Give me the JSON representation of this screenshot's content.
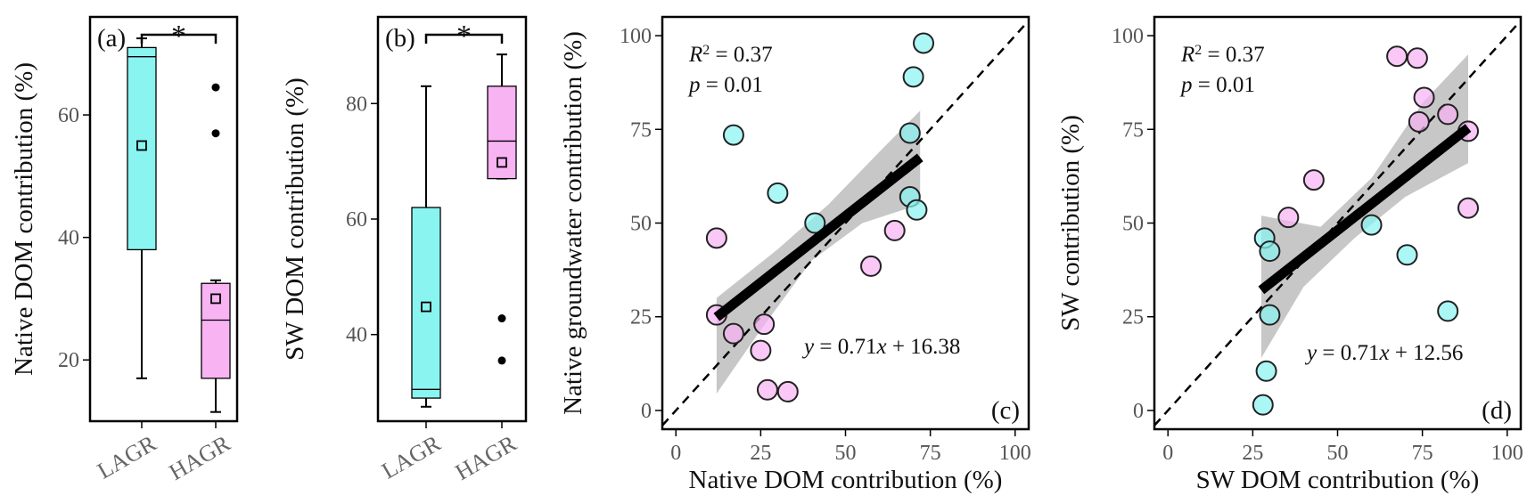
{
  "colors": {
    "lagr": "#8af4f1",
    "hagr": "#f7b3f2",
    "ci_band": "#bdbdbd",
    "frame": "#000000",
    "tick_text": "#555555"
  },
  "chart_data": [
    {
      "panel": "(a)",
      "type": "box",
      "ylabel": "Native DOM contribution (%)",
      "categories": [
        "LAGR",
        "HAGR"
      ],
      "ylim": [
        10,
        76
      ],
      "yticks": [
        20,
        40,
        60
      ],
      "significance": "*",
      "boxes": [
        {
          "category": "LAGR",
          "whisker_low": 17,
          "q1": 38,
          "median": 69.5,
          "q3": 71,
          "whisker_high": 72.5,
          "mean": 55,
          "outliers": []
        },
        {
          "category": "HAGR",
          "whisker_low": 11.5,
          "q1": 17,
          "median": 26.5,
          "q3": 32.5,
          "whisker_high": 33,
          "mean": 30,
          "outliers": [
            57,
            64.5
          ]
        }
      ]
    },
    {
      "panel": "(b)",
      "type": "box",
      "ylabel": "SW DOM contribution (%)",
      "categories": [
        "LAGR",
        "HAGR"
      ],
      "ylim": [
        25,
        95
      ],
      "yticks": [
        40,
        60,
        80
      ],
      "significance": "*",
      "boxes": [
        {
          "category": "LAGR",
          "whisker_low": 27.5,
          "q1": 29,
          "median": 30.5,
          "q3": 62,
          "whisker_high": 83,
          "mean": 44.8,
          "outliers": []
        },
        {
          "category": "HAGR",
          "whisker_low": 67,
          "q1": 67,
          "median": 73.5,
          "q3": 83,
          "whisker_high": 88.5,
          "mean": 69.8,
          "outliers": [
            35.5,
            42.8
          ]
        }
      ]
    },
    {
      "panel": "(c)",
      "type": "scatter",
      "xlabel": "Native DOM contribution (%)",
      "ylabel": "Native groundwater contribution (%)",
      "xlim": [
        -4,
        104
      ],
      "ylim": [
        -5,
        105
      ],
      "xticks": [
        0,
        25,
        50,
        75,
        100
      ],
      "yticks": [
        0,
        25,
        50,
        75,
        100
      ],
      "r2_label": "R",
      "r2_sup": "2",
      "r2_value": " = 0.37",
      "p_label": "p",
      "p_value": " = 0.01",
      "eq_prefix": "y",
      "eq_mid": " = 0.71",
      "eq_var": "x",
      "eq_suffix": " + 16.38",
      "fit": {
        "slope": 0.71,
        "intercept": 16.38,
        "x_range": [
          12,
          72
        ]
      },
      "ci_band": [
        [
          12,
          4.5
        ],
        [
          25,
          21.5
        ],
        [
          40,
          40
        ],
        [
          55,
          50
        ],
        [
          72,
          55
        ],
        [
          72,
          80
        ],
        [
          60,
          69
        ],
        [
          45,
          55
        ],
        [
          30,
          43
        ],
        [
          12,
          30
        ]
      ],
      "series": [
        {
          "group": "LAGR",
          "points": [
            [
              17,
              73.5
            ],
            [
              30,
              58
            ],
            [
              41,
              50
            ],
            [
              69,
              74
            ],
            [
              70,
              89
            ],
            [
              73,
              98
            ],
            [
              69,
              57
            ],
            [
              71,
              53.5
            ]
          ]
        },
        {
          "group": "HAGR",
          "points": [
            [
              12,
              46
            ],
            [
              12,
              25.5
            ],
            [
              17,
              20.5
            ],
            [
              25,
              16
            ],
            [
              26,
              23
            ],
            [
              27,
              5.5
            ],
            [
              33,
              5
            ],
            [
              57.5,
              38.5
            ],
            [
              64.5,
              48
            ]
          ]
        }
      ]
    },
    {
      "panel": "(d)",
      "type": "scatter",
      "xlabel": "SW DOM contribution (%)",
      "ylabel": "SW contribution (%)",
      "xlim": [
        -4,
        104
      ],
      "ylim": [
        -5,
        105
      ],
      "xticks": [
        0,
        25,
        50,
        75,
        100
      ],
      "yticks": [
        0,
        25,
        50,
        75,
        100
      ],
      "r2_label": "R",
      "r2_sup": "2",
      "r2_value": " = 0.37",
      "p_label": "p",
      "p_value": " = 0.01",
      "eq_prefix": "y",
      "eq_mid": " = 0.71",
      "eq_var": "x",
      "eq_suffix": " + 12.56",
      "fit": {
        "slope": 0.71,
        "intercept": 12.56,
        "x_range": [
          27.5,
          88.5
        ]
      },
      "ci_band": [
        [
          27.5,
          14
        ],
        [
          40,
          33
        ],
        [
          55,
          46
        ],
        [
          70,
          57
        ],
        [
          88.5,
          66
        ],
        [
          88.5,
          95
        ],
        [
          75,
          82
        ],
        [
          60,
          62
        ],
        [
          45,
          49
        ],
        [
          27.5,
          52
        ]
      ],
      "series": [
        {
          "group": "LAGR",
          "points": [
            [
              28,
              1.5
            ],
            [
              29,
              10.5
            ],
            [
              28.5,
              46
            ],
            [
              30,
              42.5
            ],
            [
              30,
              25.5
            ],
            [
              60,
              49.5
            ],
            [
              70.5,
              41.5
            ],
            [
              82.5,
              26.5
            ]
          ]
        },
        {
          "group": "HAGR",
          "points": [
            [
              35.5,
              51.5
            ],
            [
              43,
              61.5
            ],
            [
              67.5,
              94.5
            ],
            [
              73.5,
              94
            ],
            [
              75.5,
              83.5
            ],
            [
              74,
              77
            ],
            [
              82.5,
              79
            ],
            [
              88.5,
              74.5
            ],
            [
              88.5,
              54
            ]
          ]
        }
      ]
    }
  ]
}
